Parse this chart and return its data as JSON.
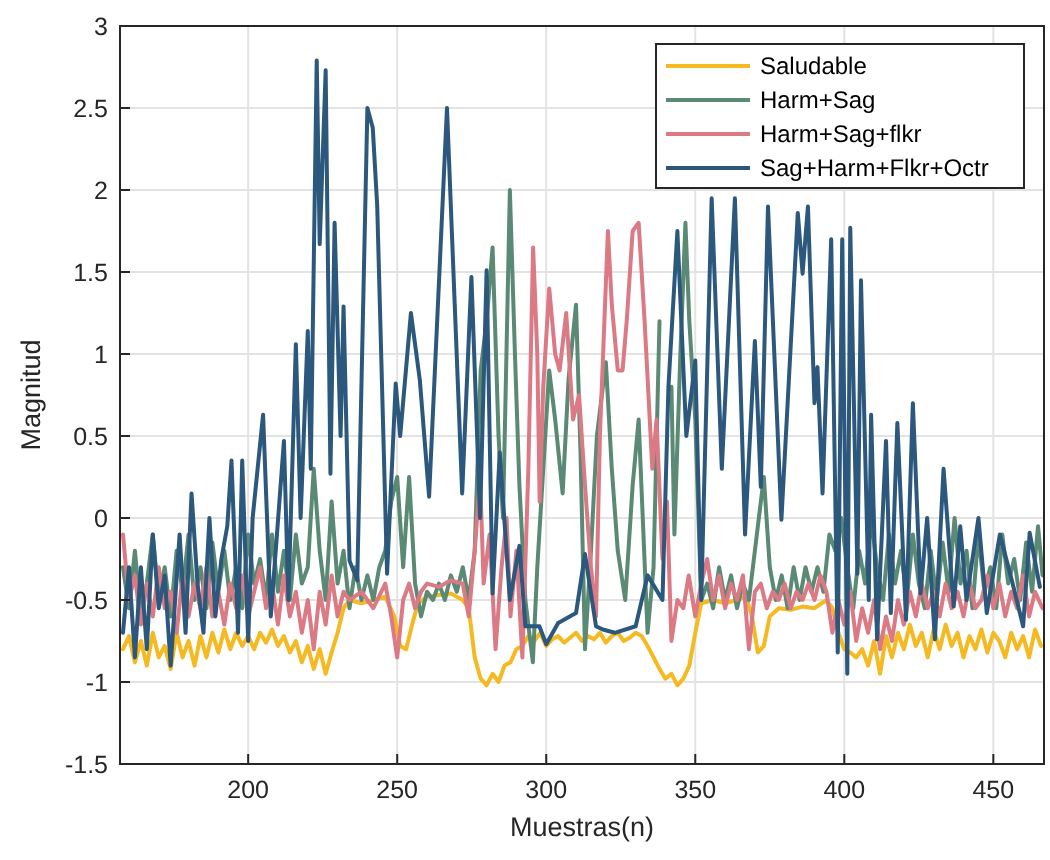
{
  "chart_data": {
    "type": "line",
    "xlabel": "Muestras(n)",
    "ylabel": "Magnitud",
    "xlim": [
      157,
      467
    ],
    "ylim": [
      -1.5,
      3
    ],
    "xticks": [
      200,
      250,
      300,
      350,
      400,
      450
    ],
    "yticks": [
      -1.5,
      -1,
      -0.5,
      0,
      0.5,
      1,
      1.5,
      2,
      2.5,
      3
    ],
    "grid": true,
    "legend": "top right",
    "line_style": "solid",
    "marker": "none",
    "series": [
      {
        "name": "Saludable",
        "color": "#f5b921",
        "x": [
          158,
          160,
          162,
          164,
          166,
          168,
          170,
          172,
          174,
          176,
          178,
          180,
          182,
          184,
          186,
          188,
          190,
          192,
          194,
          196,
          198,
          200,
          202,
          204,
          206,
          208,
          210,
          212,
          214,
          216,
          218,
          220,
          222,
          224,
          226,
          228,
          230,
          232,
          234,
          238,
          242,
          246,
          249,
          251,
          253,
          255,
          257,
          260,
          264,
          268,
          272,
          274,
          276,
          278,
          280,
          282,
          284,
          286,
          288,
          290,
          292,
          294,
          296,
          298,
          300,
          302,
          304,
          306,
          308,
          310,
          312,
          314,
          316,
          318,
          320,
          322,
          324,
          326,
          328,
          330,
          332,
          334,
          336,
          338,
          340,
          342,
          344,
          346,
          348,
          350,
          352,
          356,
          360,
          364,
          367,
          369,
          371,
          373,
          375,
          378,
          382,
          386,
          390,
          394,
          396,
          398,
          400,
          402,
          404,
          406,
          408,
          410,
          412,
          414,
          416,
          418,
          420,
          422,
          424,
          426,
          428,
          430,
          432,
          434,
          436,
          438,
          440,
          442,
          444,
          446,
          448,
          450,
          452,
          454,
          456,
          458,
          460,
          462,
          464,
          466
        ],
        "values": [
          -0.8,
          -0.72,
          -0.88,
          -0.75,
          -0.9,
          -0.7,
          -0.85,
          -0.78,
          -0.92,
          -0.7,
          -0.85,
          -0.75,
          -0.9,
          -0.72,
          -0.85,
          -0.7,
          -0.82,
          -0.68,
          -0.8,
          -0.7,
          -0.78,
          -0.72,
          -0.8,
          -0.7,
          -0.76,
          -0.68,
          -0.78,
          -0.72,
          -0.82,
          -0.75,
          -0.88,
          -0.78,
          -0.92,
          -0.8,
          -0.95,
          -0.82,
          -0.7,
          -0.55,
          -0.5,
          -0.52,
          -0.5,
          -0.48,
          -0.6,
          -0.78,
          -0.8,
          -0.65,
          -0.52,
          -0.48,
          -0.47,
          -0.46,
          -0.5,
          -0.55,
          -0.85,
          -0.98,
          -1.02,
          -0.95,
          -1.0,
          -0.9,
          -0.88,
          -0.8,
          -0.78,
          -0.72,
          -0.75,
          -0.7,
          -0.78,
          -0.74,
          -0.72,
          -0.76,
          -0.73,
          -0.7,
          -0.75,
          -0.72,
          -0.74,
          -0.7,
          -0.76,
          -0.72,
          -0.7,
          -0.75,
          -0.73,
          -0.7,
          -0.72,
          -0.78,
          -0.85,
          -0.92,
          -0.98,
          -0.95,
          -1.02,
          -0.98,
          -0.9,
          -0.7,
          -0.52,
          -0.5,
          -0.52,
          -0.5,
          -0.48,
          -0.6,
          -0.82,
          -0.78,
          -0.6,
          -0.55,
          -0.56,
          -0.54,
          -0.55,
          -0.5,
          -0.55,
          -0.7,
          -0.8,
          -0.82,
          -0.85,
          -0.8,
          -0.9,
          -0.75,
          -0.95,
          -0.72,
          -0.85,
          -0.7,
          -0.8,
          -0.65,
          -0.78,
          -0.7,
          -0.85,
          -0.68,
          -0.8,
          -0.65,
          -0.78,
          -0.7,
          -0.85,
          -0.72,
          -0.8,
          -0.68,
          -0.82,
          -0.7,
          -0.75,
          -0.85,
          -0.7,
          -0.8,
          -0.72,
          -0.85,
          -0.68,
          -0.78
        ]
      },
      {
        "name": "Harm+Sag",
        "color": "#5a8a73",
        "x": [
          158,
          160,
          162,
          164,
          166,
          168,
          170,
          172,
          174,
          176,
          178,
          180,
          182,
          184,
          186,
          188,
          190,
          192,
          194,
          196,
          198,
          200,
          202,
          204,
          206,
          208,
          210,
          212,
          214,
          216,
          218,
          220,
          222,
          224,
          226,
          228,
          230,
          232,
          234,
          236,
          238,
          240,
          242,
          244,
          246,
          248,
          250,
          252,
          254,
          256,
          258,
          260,
          262,
          264,
          266,
          268,
          270,
          272,
          274,
          276,
          278,
          280,
          282,
          284,
          285.5,
          287.8,
          289.5,
          291,
          293,
          295.5,
          297,
          299,
          301,
          303,
          305.5,
          307.5,
          310,
          311.5,
          313,
          315,
          317,
          320,
          322,
          324,
          326.5,
          329,
          331,
          334,
          336,
          338,
          340,
          342,
          343,
          345,
          346.7,
          348,
          350,
          352,
          354,
          356,
          358,
          360,
          362,
          364,
          366,
          368,
          370,
          373,
          375,
          377,
          379,
          381,
          383,
          385,
          387,
          389,
          391,
          393,
          395,
          397,
          399,
          401,
          403,
          405,
          407,
          409,
          411,
          413,
          415,
          417,
          419,
          421,
          423,
          425,
          427,
          429,
          431,
          433,
          435,
          437,
          439,
          441,
          443,
          445,
          447,
          449,
          451,
          453,
          455,
          457,
          459,
          461,
          463,
          465,
          466.5
        ],
        "values": [
          -0.3,
          -0.55,
          -0.2,
          -0.6,
          -0.4,
          -0.1,
          -0.5,
          -0.3,
          -0.6,
          -0.2,
          -0.45,
          -0.1,
          -0.5,
          -0.3,
          -0.55,
          -0.15,
          -0.45,
          -0.2,
          -0.5,
          -0.3,
          -0.55,
          -0.1,
          -0.4,
          -0.25,
          -0.5,
          -0.1,
          -0.45,
          -0.2,
          -0.5,
          -0.1,
          -0.4,
          -0.3,
          0.3,
          -0.2,
          -0.5,
          0.1,
          -0.4,
          -0.2,
          -0.55,
          -0.3,
          -0.5,
          -0.35,
          -0.5,
          -0.3,
          -0.2,
          0.1,
          0.25,
          -0.3,
          0.25,
          -0.4,
          -0.6,
          -0.45,
          -0.5,
          -0.4,
          -0.5,
          -0.35,
          -0.45,
          -0.3,
          -0.5,
          -0.2,
          0.9,
          1.2,
          1.65,
          0.5,
          0.0,
          2.0,
          1.0,
          0.2,
          -0.5,
          -0.88,
          -0.3,
          0.3,
          0.9,
          0.6,
          0.15,
          0.85,
          1.3,
          0.4,
          -0.8,
          -0.2,
          0.5,
          0.95,
          0.3,
          -0.2,
          -0.5,
          0.2,
          0.6,
          -0.7,
          -0.3,
          1.2,
          null,
          0.8,
          -0.1,
          1.0,
          1.8,
          1.2,
          0.6,
          -0.5,
          -0.4,
          -0.55,
          -0.3,
          -0.5,
          -0.35,
          -0.55,
          -0.4,
          -0.5,
          -0.2,
          0.25,
          -0.3,
          -0.5,
          -0.35,
          -0.55,
          -0.3,
          -0.5,
          -0.3,
          -0.45,
          -0.3,
          -0.45,
          -0.1,
          -0.2,
          0.0,
          -0.3,
          -0.55,
          -0.2,
          -0.4,
          0.0,
          -0.3,
          -0.5,
          -0.1,
          -0.4,
          -0.2,
          -0.5,
          -0.1,
          -0.4,
          -0.55,
          -0.2,
          -0.5,
          -0.15,
          -0.45,
          0.0,
          -0.4,
          -0.2,
          -0.55,
          -0.1,
          -0.45,
          -0.3,
          -0.55,
          -0.1,
          -0.4,
          -0.25,
          -0.5,
          -0.15,
          -0.45,
          -0.05,
          -0.35
        ]
      },
      {
        "name": "Harm+Sag+flkr",
        "color": "#db7a84",
        "x": [
          158,
          160,
          162,
          164,
          166,
          168,
          170,
          172,
          174,
          176,
          178,
          180,
          182,
          184,
          186,
          188,
          190,
          192,
          194,
          196,
          198,
          200,
          202,
          204,
          206,
          208,
          210,
          212,
          214,
          216,
          218,
          220,
          222,
          224,
          226,
          228,
          230,
          232,
          234,
          238,
          242,
          246,
          248,
          250,
          252,
          254,
          256,
          258,
          260,
          264,
          268,
          272,
          274,
          276,
          277.8,
          279,
          281,
          283,
          285,
          286.7,
          288,
          290,
          292,
          294,
          295.6,
          297,
          297.8,
          299,
          301,
          303,
          304.5,
          306.7,
          309,
          311,
          313,
          315,
          316.7,
          318,
          320.7,
          322,
          324,
          325.6,
          327,
          329,
          331,
          333,
          335.6,
          337,
          339,
          340.5,
          342,
          344,
          346,
          347.8,
          350,
          352,
          354,
          356,
          358,
          360,
          362,
          364,
          366,
          368,
          370,
          372,
          374,
          376,
          378,
          380,
          382,
          384,
          386,
          388,
          390,
          392,
          394,
          396,
          398,
          400,
          402,
          404,
          406,
          408,
          410,
          412,
          414,
          416,
          418,
          420,
          422,
          424,
          426,
          428,
          430,
          432,
          434,
          436,
          438,
          440,
          442,
          444,
          446,
          448,
          450,
          452,
          454,
          456,
          458,
          460,
          462,
          464,
          466.5
        ],
        "values": [
          -0.1,
          -0.5,
          -0.35,
          -0.65,
          -0.4,
          -0.6,
          -0.3,
          -0.55,
          -0.45,
          -0.7,
          -0.35,
          -0.6,
          -0.4,
          -0.55,
          -0.3,
          -0.6,
          -0.45,
          -0.65,
          -0.4,
          -0.55,
          -0.35,
          -0.6,
          -0.45,
          -0.3,
          -0.55,
          -0.4,
          -0.65,
          -0.35,
          -0.6,
          -0.45,
          -0.7,
          -0.5,
          -0.8,
          -0.45,
          -0.65,
          -0.35,
          -0.6,
          -0.45,
          -0.5,
          -0.45,
          -0.55,
          -0.4,
          -0.6,
          -0.85,
          -0.5,
          -0.4,
          -0.55,
          -0.45,
          -0.4,
          -0.42,
          -0.38,
          -0.4,
          -0.6,
          -0.2,
          0.25,
          -0.4,
          -0.1,
          -0.8,
          -0.3,
          0.0,
          -0.6,
          -0.2,
          -0.85,
          0.3,
          1.65,
          1.0,
          0.1,
          0.8,
          1.4,
          1.0,
          0.9,
          1.25,
          0.6,
          0.75,
          0.2,
          -0.3,
          -0.6,
          0.5,
          1.75,
          1.3,
          0.9,
          0.9,
          1.2,
          1.75,
          1.8,
          1.2,
          0.3,
          0.6,
          -0.25,
          0.1,
          -0.75,
          -0.5,
          -0.55,
          -0.35,
          -0.6,
          -0.4,
          -0.25,
          -0.5,
          -0.35,
          -0.55,
          -0.4,
          -0.5,
          -0.35,
          -0.8,
          -0.45,
          -0.4,
          -0.55,
          -0.45,
          -0.5,
          -0.4,
          -0.55,
          -0.45,
          -0.5,
          -0.4,
          -0.5,
          -0.35,
          -0.45,
          -0.7,
          -0.5,
          -0.65,
          -0.45,
          -0.75,
          -0.55,
          -0.7,
          -0.5,
          -0.8,
          -0.6,
          -0.75,
          -0.5,
          -0.65,
          -0.45,
          -0.6,
          -0.4,
          -0.55,
          -0.45,
          -0.6,
          -0.4,
          -0.55,
          -0.45,
          -0.6,
          -0.4,
          -0.55,
          -0.5,
          -0.35,
          -0.55,
          -0.4,
          -0.6,
          -0.45,
          -0.55,
          -0.35,
          -0.6,
          -0.45,
          -0.55
        ]
      },
      {
        "name": "Sag+Harm+Flkr+Octr",
        "color": "#2c587d",
        "x": [
          158,
          160,
          162,
          164,
          166,
          168,
          170,
          172,
          174,
          177,
          179,
          181,
          183,
          185,
          187,
          189,
          191,
          193,
          194.4,
          196.6,
          198,
          200,
          201.5,
          205,
          207.6,
          212,
          213.5,
          216,
          217.6,
          220,
          221,
          223,
          224,
          226,
          227.6,
          229,
          231,
          232,
          234,
          236.6,
          240,
          241.8,
          243.3,
          246.6,
          249.5,
          251,
          254.6,
          257.6,
          260.7,
          266.7,
          271.8,
          274.9,
          277.8,
          280,
          282,
          284.4,
          287.8,
          291,
          293,
          297.7,
          300,
          304,
          310,
          313,
          316.7,
          319,
          323,
          330,
          334,
          339,
          341,
          344,
          347,
          350,
          352,
          355.5,
          358.9,
          363.3,
          366.7,
          370,
          372,
          374.4,
          378.9,
          384.4,
          386,
          387.8,
          390,
          391,
          392.7,
          395.6,
          397.8,
          399.3,
          401,
          402,
          404.4,
          405.6,
          408.2,
          409,
          411,
          414,
          415.6,
          417.8,
          420.7,
          423,
          425.6,
          427.8,
          430.4,
          433.3,
          436.7,
          438.9,
          441,
          445,
          447.8,
          452.2,
          456.2,
          460,
          462.2,
          465.6
        ],
        "values": [
          -0.7,
          -0.3,
          -0.85,
          -0.3,
          -0.8,
          -0.1,
          -0.55,
          -0.35,
          -0.9,
          -0.1,
          -0.7,
          0.15,
          -0.4,
          -0.7,
          0.0,
          -0.6,
          -0.25,
          -0.05,
          0.35,
          -0.7,
          0.35,
          -0.75,
          0.0,
          0.63,
          -0.6,
          0.47,
          -0.5,
          1.06,
          0.0,
          1.14,
          0.3,
          2.79,
          1.67,
          2.73,
          0.27,
          1.8,
          0.5,
          1.29,
          -0.26,
          -0.38,
          2.5,
          2.38,
          1.9,
          -0.34,
          0.82,
          0.5,
          1.25,
          0.84,
          0.13,
          2.5,
          0.15,
          1.47,
          0.0,
          1.51,
          -0.46,
          0.4,
          -0.5,
          -0.17,
          -0.66,
          -0.66,
          -0.77,
          -0.64,
          -0.58,
          -0.22,
          -0.66,
          -0.68,
          -0.7,
          -0.66,
          -0.35,
          -0.5,
          0.8,
          1.75,
          0.5,
          0.96,
          -0.5,
          1.95,
          0.3,
          1.95,
          -0.1,
          1.08,
          0.19,
          1.9,
          -0.01,
          1.86,
          1.49,
          1.9,
          0.7,
          0.92,
          0.15,
          1.7,
          -0.82,
          1.7,
          -0.95,
          1.77,
          -0.34,
          1.45,
          -0.5,
          0.63,
          -0.74,
          0.47,
          -0.58,
          0.58,
          -0.62,
          0.7,
          -0.46,
          0.0,
          -0.74,
          0.3,
          -0.54,
          -0.05,
          -0.5,
          0.0,
          -0.58,
          -0.1,
          -0.38,
          -0.66,
          -0.09,
          -0.42
        ]
      }
    ]
  }
}
